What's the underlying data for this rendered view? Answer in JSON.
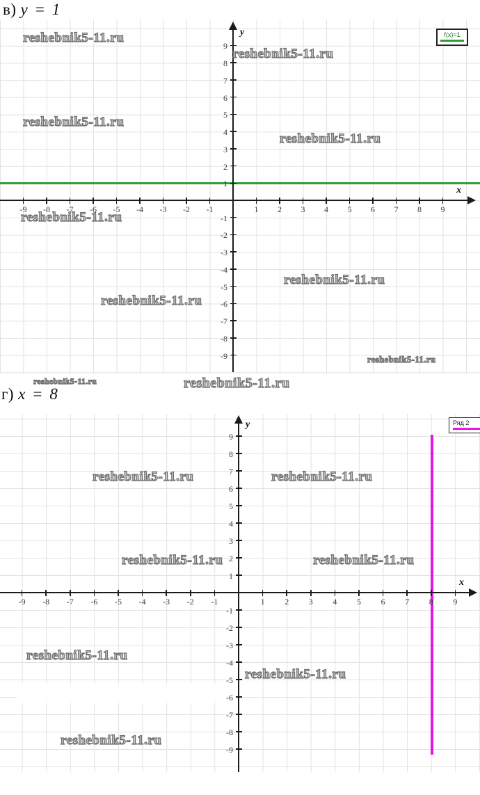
{
  "page": {
    "background": "#ffffff"
  },
  "watermark": {
    "text": "reshebnik5-11.ru"
  },
  "chart_data": [
    {
      "type": "line",
      "title": "в) y = 1",
      "prefix": "в)",
      "equation": "y = 1",
      "xlabel": "x",
      "ylabel": "y",
      "xlim": [
        -10.1,
        10.4
      ],
      "ylim": [
        -10.2,
        10.2
      ],
      "grid": true,
      "x_ticks": [
        -9,
        -8,
        -7,
        -6,
        -5,
        -4,
        -3,
        -2,
        -1,
        1,
        2,
        3,
        4,
        5,
        6,
        7,
        8,
        9
      ],
      "y_ticks": [
        9,
        8,
        7,
        6,
        5,
        4,
        3,
        2,
        1,
        -1,
        -2,
        -3,
        -4,
        -5,
        -6,
        -7,
        -8,
        -9
      ],
      "legend": {
        "label": "f(x)=1",
        "position": "top-right",
        "label_color": "#1d6f1d"
      },
      "series": [
        {
          "name": "f(x)=1",
          "equation": "y = 1",
          "color": "#2f9e2f",
          "points": [
            [
              -10.1,
              1
            ],
            [
              10.4,
              1
            ]
          ]
        }
      ]
    },
    {
      "type": "line",
      "title": "г) x = 8",
      "prefix": "г)",
      "equation": "x = 8",
      "xlabel": "x",
      "ylabel": "y",
      "xlim": [
        -9.9,
        10.0
      ],
      "ylim": [
        -10.2,
        10.1
      ],
      "grid": true,
      "x_ticks": [
        -9,
        -8,
        -7,
        -6,
        -5,
        -4,
        -3,
        -2,
        -1,
        1,
        2,
        3,
        4,
        5,
        6,
        7,
        8,
        9
      ],
      "y_ticks": [
        9,
        8,
        7,
        6,
        5,
        4,
        3,
        2,
        1,
        -1,
        -2,
        -3,
        -4,
        -5,
        -6,
        -7,
        -8,
        -9
      ],
      "legend": {
        "label": "Ряд 2",
        "position": "top-right",
        "label_color": "#222222"
      },
      "series": [
        {
          "name": "Ряд 2",
          "equation": "x = 8",
          "color": "#e616e6",
          "points": [
            [
              8,
              9.1
            ],
            [
              8,
              -9.3
            ]
          ]
        }
      ]
    }
  ]
}
